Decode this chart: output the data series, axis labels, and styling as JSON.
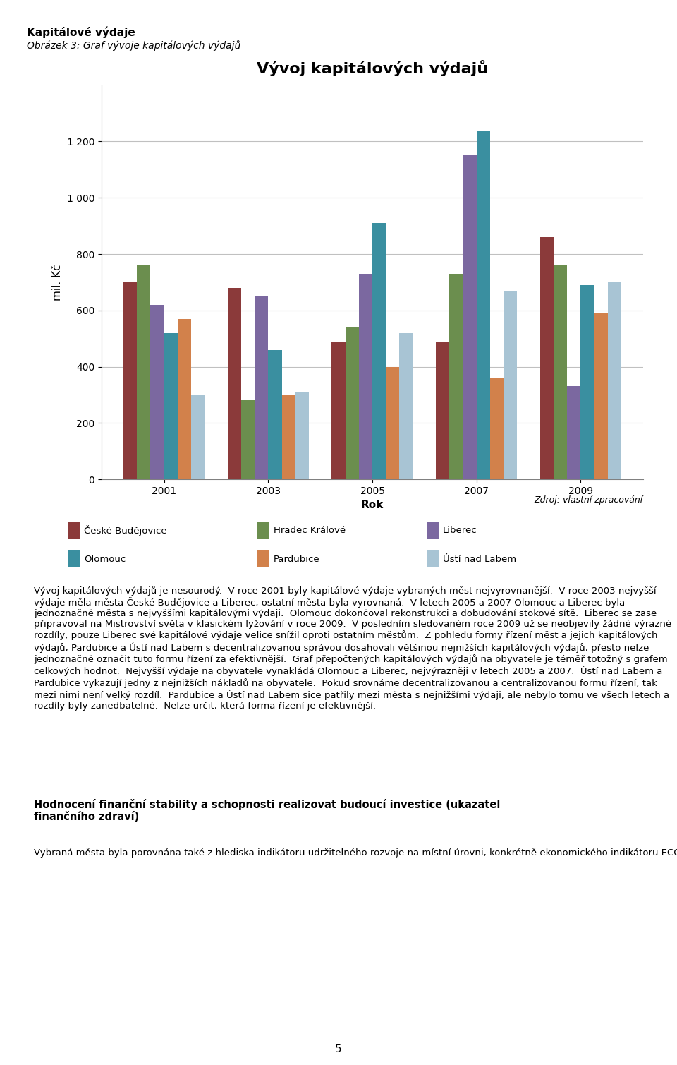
{
  "title": "Vývoj kapitálových výdajů",
  "xlabel": "Rok",
  "ylabel": "mil. Kč",
  "years": [
    2001,
    2003,
    2005,
    2007,
    2009
  ],
  "cities": [
    "České Budějovice",
    "Hradec Králové",
    "Liberec",
    "Olomouc",
    "Pardubice",
    "Ústí nad Labem"
  ],
  "colors": [
    "#8B3A3A",
    "#6B8E4E",
    "#7B68A0",
    "#3A8FA0",
    "#D2814B",
    "#A8C4D4"
  ],
  "values": {
    "České Budějovice": [
      700,
      680,
      490,
      490,
      860
    ],
    "Hradec Králové": [
      760,
      280,
      540,
      730,
      760
    ],
    "Liberec": [
      620,
      650,
      730,
      1150,
      330
    ],
    "Olomouc": [
      520,
      460,
      910,
      1240,
      690
    ],
    "Pardubice": [
      570,
      300,
      400,
      360,
      590
    ],
    "Ústí nad Labem": [
      300,
      310,
      520,
      670,
      700
    ]
  },
  "ylim": [
    0,
    1400
  ],
  "yticks": [
    0,
    200,
    400,
    600,
    800,
    1000,
    1200
  ],
  "ytick_labels": [
    "0",
    "200",
    "400",
    "600",
    "800",
    "1 000",
    "1 200"
  ],
  "title_fontsize": 16,
  "axis_label_fontsize": 11,
  "tick_fontsize": 10,
  "legend_fontsize": 9.5,
  "heading1": "Kapitálové výdaje",
  "heading2": "Obrázek 3: Graf vývoje kapitálových výdajů",
  "source_text": "Zdroj: vlastní zpracování",
  "background_color": "#FFFFFF",
  "chart_bg": "#FFFFFF",
  "grid_color": "#C0C0C0"
}
